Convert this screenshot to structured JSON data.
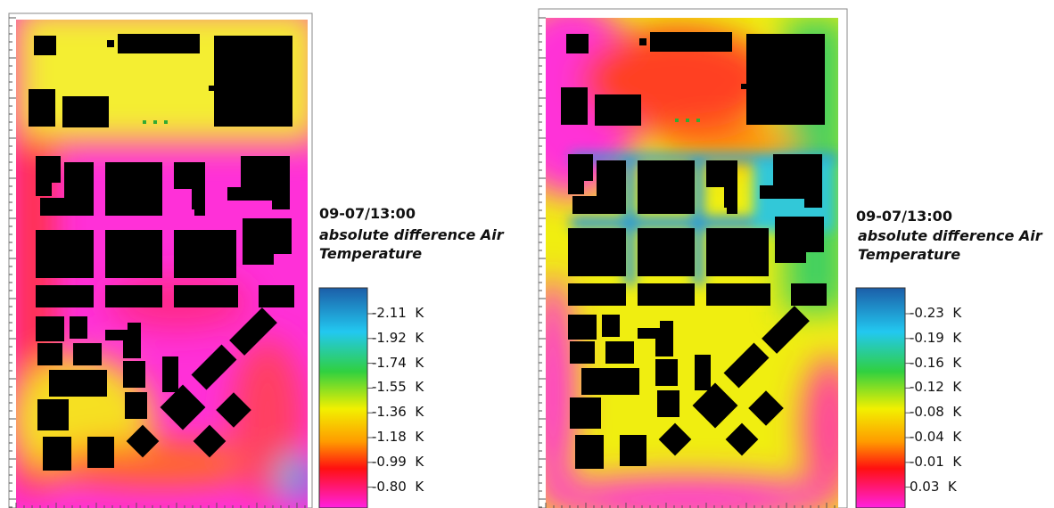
{
  "panels": [
    {
      "timestamp": "09-07/13:00",
      "title": "absolute difference Air Temperature",
      "legend": [
        "-2.11  K",
        "-1.92  K",
        "-1.74  K",
        "-1.55  K",
        "-1.36  K",
        "-1.18  K",
        "-0.99  K",
        "-0.80  K"
      ]
    },
    {
      "timestamp": "09-07/13:00",
      "title": "absolute difference Air Temperature",
      "legend": [
        "-0.23  K",
        "-0.19  K",
        "-0.16  K",
        "-0.12  K",
        "-0.08  K",
        "-0.04  K",
        "-0.01  K",
        "0.03  K"
      ]
    }
  ]
}
